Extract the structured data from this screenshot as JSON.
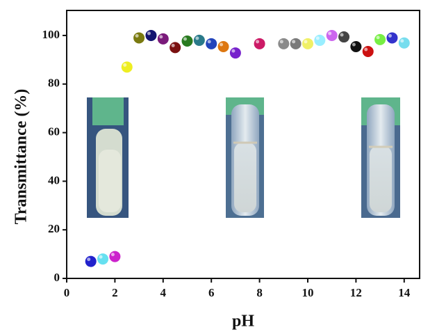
{
  "chart_data": {
    "type": "scatter",
    "x_label": "pH",
    "y_label": "Transmittance (%)",
    "x": [
      1,
      1.5,
      2,
      2.5,
      3,
      3.5,
      4,
      4.5,
      5,
      5.5,
      6,
      6.5,
      7,
      8,
      9,
      9.5,
      10,
      10.5,
      11,
      11.5,
      12,
      12.5,
      13,
      13.5,
      14
    ],
    "values": [
      7,
      8,
      9,
      87,
      99,
      100,
      98.6,
      95,
      97.7,
      98,
      96.6,
      95.4,
      92.8,
      96.6,
      96.6,
      96.6,
      96.6,
      98,
      100,
      99.4,
      95.4,
      93.4,
      98.3,
      99,
      96.9
    ],
    "colors": [
      "#2222cc",
      "#66e0f0",
      "#cc22cc",
      "#eeee22",
      "#7a7a10",
      "#141470",
      "#7a1a7a",
      "#7a1010",
      "#2a7a20",
      "#2a7a8a",
      "#2244bb",
      "#dd7711",
      "#7722cc",
      "#cc1a66",
      "#8a8a8a",
      "#7a7a7a",
      "#f0f066",
      "#99eeff",
      "#cc66ee",
      "#444444",
      "#111111",
      "#cc1111",
      "#77ee44",
      "#3333cc",
      "#77ddee"
    ],
    "xlim": [
      0,
      14.64
    ],
    "ylim": [
      0,
      110.3
    ],
    "xticks": [
      0,
      2,
      4,
      6,
      8,
      10,
      12,
      14
    ],
    "yticks": [
      0,
      20,
      40,
      60,
      80,
      100
    ]
  }
}
